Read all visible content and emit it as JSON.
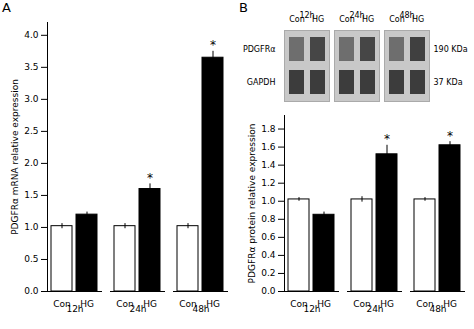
{
  "chart_data": [
    {
      "type": "bar",
      "title": "A",
      "ylabel": "PDGFRα mRNA relative expression",
      "categories": [
        "12h",
        "24h",
        "48h"
      ],
      "series": [
        {
          "name": "Con",
          "color": "white",
          "values": [
            1.02,
            1.02,
            1.02
          ],
          "errors": [
            0.04,
            0.04,
            0.04
          ]
        },
        {
          "name": "HG",
          "color": "black",
          "values": [
            1.2,
            1.6,
            3.65
          ],
          "errors": [
            0.04,
            0.08,
            0.1
          ]
        }
      ],
      "annotations": [
        {
          "category": "24h",
          "series": "HG",
          "text": "*"
        },
        {
          "category": "48h",
          "series": "HG",
          "text": "*"
        }
      ],
      "ylim": [
        0,
        4.2
      ],
      "yticks": [
        {
          "value": 0,
          "label": "0.0"
        },
        0.5,
        {
          "value": 1,
          "label": "1.0"
        },
        1.5,
        {
          "value": 2,
          "label": "2.0"
        },
        2.5,
        {
          "value": 3,
          "label": "3.0"
        },
        3.5,
        {
          "value": 4,
          "label": "4.0"
        }
      ]
    },
    {
      "type": "blot",
      "title": "B",
      "groups": [
        "12h",
        "24h",
        "48h"
      ],
      "categories": [
        "Con",
        "HG",
        "Con",
        "HG",
        "Con",
        "HG"
      ],
      "series": [
        {
          "name": "PDGFRα",
          "label": "190 KDa",
          "values": [
            0.45,
            0.65,
            0.45,
            0.65,
            0.45,
            0.68
          ]
        },
        {
          "name": "GAPDH",
          "label": "37 KDa",
          "values": [
            0.7,
            0.7,
            0.7,
            0.7,
            0.7,
            0.7
          ]
        }
      ]
    },
    {
      "type": "bar",
      "ylabel": "PDGFRα protein relative expression",
      "categories": [
        "12h",
        "24h",
        "48h"
      ],
      "series": [
        {
          "name": "Con",
          "color": "white",
          "values": [
            1.02,
            1.02,
            1.02
          ],
          "errors": [
            0.02,
            0.03,
            0.02
          ]
        },
        {
          "name": "HG",
          "color": "black",
          "values": [
            0.85,
            1.52,
            1.62
          ],
          "errors": [
            0.03,
            0.1,
            0.04
          ]
        }
      ],
      "annotations": [
        {
          "category": "24h",
          "series": "HG",
          "text": "*"
        },
        {
          "category": "48h",
          "series": "HG",
          "text": "*"
        }
      ],
      "ylim": [
        0.0,
        1.95
      ],
      "yticks": [
        {
          "value": 0,
          "label": "0.0"
        },
        0.2,
        0.4,
        0.6,
        0.8,
        {
          "value": 1,
          "label": "1.0"
        },
        1.2,
        1.4,
        1.6,
        1.8
      ]
    }
  ]
}
